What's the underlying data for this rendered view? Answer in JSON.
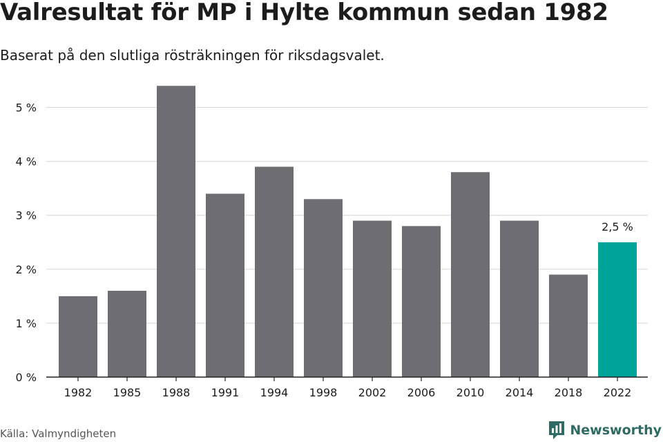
{
  "title": "Valresultat för MP i Hylte kommun sedan 1982",
  "subtitle": "Baserat på den slutliga rösträkningen för riksdagsvalet.",
  "source": "Källa: Valmyndigheten",
  "brand": {
    "name": "Newsworthy",
    "icon": "newsworthy-logo-icon"
  },
  "colors": {
    "bar": "#6e6d72",
    "highlight": "#00a397",
    "grid": "#dcdcdc",
    "axis": "#222222",
    "text": "#1c1c1c",
    "brand": "#2f6b62"
  },
  "chart_data": {
    "type": "bar",
    "title": "Valresultat för MP i Hylte kommun sedan 1982",
    "subtitle": "Baserat på den slutliga rösträkningen för riksdagsvalet.",
    "xlabel": "",
    "ylabel": "",
    "categories": [
      "1982",
      "1985",
      "1988",
      "1991",
      "1994",
      "1998",
      "2002",
      "2006",
      "2010",
      "2014",
      "2018",
      "2022"
    ],
    "values": [
      1.5,
      1.6,
      5.4,
      3.4,
      3.9,
      3.3,
      2.9,
      2.8,
      3.8,
      2.9,
      1.9,
      2.5
    ],
    "ylim": [
      0,
      5.5
    ],
    "yticks": [
      0,
      1,
      2,
      3,
      4,
      5
    ],
    "ytick_labels": [
      "0 %",
      "1 %",
      "2 %",
      "3 %",
      "4 %",
      "5 %"
    ],
    "grid": true,
    "legend": "none",
    "highlight_index": 11,
    "annotations": [
      {
        "category": "2022",
        "text": "2,5 %"
      }
    ]
  }
}
